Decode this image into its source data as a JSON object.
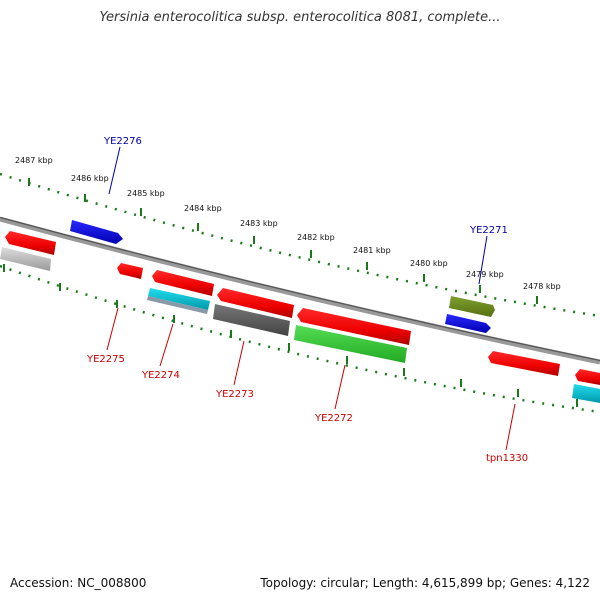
{
  "title": "Yersinia enterocolitica subsp. enterocolitica 8081, complete...",
  "footer": {
    "accession": "Accession: NC_008800",
    "summary": "Topology: circular; Length: 4,615,899 bp; Genes: 4,122"
  },
  "scale_labels": [
    "2487 kbp",
    "2486 kbp",
    "2485 kbp",
    "2484 kbp",
    "2483 kbp",
    "2482 kbp",
    "2481 kbp",
    "2480 kbp",
    "2479 kbp",
    "2478 kbp"
  ],
  "colors": {
    "forward_label": "#0000aa",
    "reverse_label": "#cc0000",
    "tick": "#1a7a1a",
    "backbone": "#777777",
    "red": "#ff0000",
    "blue": "#0000ff",
    "cyan": "#00c8d8",
    "green": "#33cc33",
    "olive": "#6b8e23",
    "grey": "#666666",
    "lightgrey": "#bbbbbb"
  },
  "forward_labels": [
    "YE2276",
    "YE2271"
  ],
  "reverse_labels": [
    "YE2275",
    "YE2274",
    "YE2273",
    "YE2272",
    "tpn1330"
  ]
}
